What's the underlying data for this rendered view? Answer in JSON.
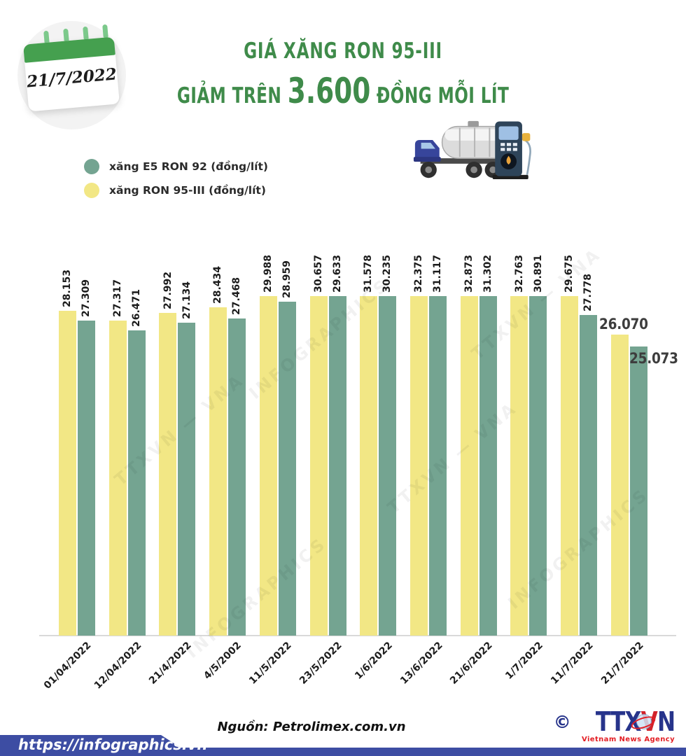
{
  "calendar": {
    "date": "21/7/2022"
  },
  "title": {
    "line1": "GIÁ XĂNG RON 95-III",
    "line2_prefix": "GIẢM TRÊN ",
    "line2_highlight": "3.600",
    "line2_suffix": " ĐỒNG MỖI LÍT",
    "color": "#3F8B4A"
  },
  "legend": [
    {
      "label": "xăng E5 RON 92 (đồng/lít)",
      "color": "#74A491"
    },
    {
      "label": "xăng RON 95-III (đồng/lít)",
      "color": "#F2E785"
    }
  ],
  "icons": {
    "truck": "tanker-truck",
    "pump": "fuel-pump"
  },
  "chart_data": {
    "type": "bar",
    "categories": [
      "01/04/2022",
      "12/04/2022",
      "21/4/2022",
      "4/5/2002",
      "11/5/2022",
      "23/5/2022",
      "1/6/2022",
      "13/6/2022",
      "21/6/2022",
      "1/7/2022",
      "11/7/2022",
      "21/7/2022"
    ],
    "series": [
      {
        "name": "xăng RON 95-III (đồng/lít)",
        "color": "#F2E785",
        "values": [
          28153,
          27317,
          27992,
          28434,
          29988,
          30657,
          31578,
          32375,
          32873,
          32763,
          29675,
          26070
        ],
        "labels": [
          "28.153",
          "27.317",
          "27.992",
          "28.434",
          "29.988",
          "30.657",
          "31.578",
          "32.375",
          "32.873",
          "32.763",
          "29.675",
          "26.070"
        ]
      },
      {
        "name": "xăng E5 RON 92 (đồng/lít)",
        "color": "#74A491",
        "values": [
          27309,
          26471,
          27134,
          27468,
          28959,
          29633,
          30235,
          31117,
          31302,
          30891,
          27778,
          25073
        ],
        "labels": [
          "27.309",
          "26.471",
          "27.134",
          "27.468",
          "28.959",
          "29.633",
          "30.235",
          "31.117",
          "31.302",
          "30.891",
          "27.778",
          "25.073"
        ]
      }
    ],
    "ylim": [
      0,
      33000
    ],
    "grid": false,
    "legend_position": "top-left",
    "value_label_style": "rotated vertical, last pair horizontal large"
  },
  "watermarks": [
    "TTXVN — VNA",
    "INFOGRAPHICS"
  ],
  "footer": {
    "source": "Nguồn: Petrolimex.com.vn",
    "url": "https://infographics.vn",
    "copyright": "©",
    "agency_pre": "TTX",
    "agency_v": "V",
    "agency_post": "N",
    "agency_subtitle": "Vietnam News Agency",
    "band_color": "#3D4DA3"
  }
}
